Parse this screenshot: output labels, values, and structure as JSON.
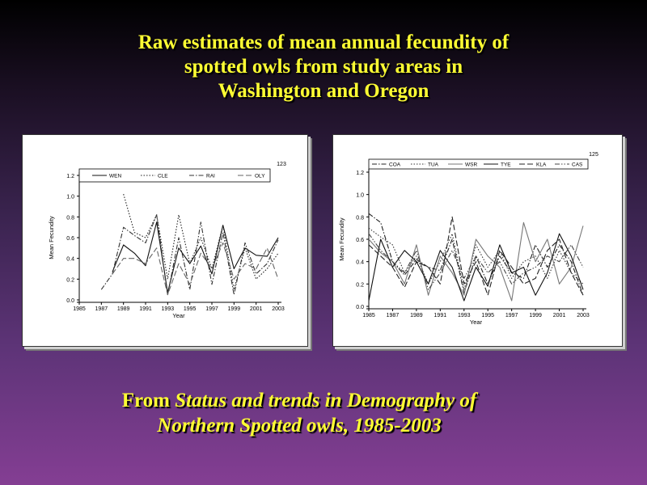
{
  "slide": {
    "title_lines": [
      "Raw estimates of mean annual fecundity of",
      "spotted owls from study areas in",
      "Washington and Oregon"
    ],
    "caption_prefix": "From ",
    "caption_italic_1": "Status and trends in Demography of",
    "caption_italic_2": "Northern Spotted owls, 1985-2003",
    "title_color": "#ffff33"
  },
  "chart_data": [
    {
      "type": "line",
      "panel_number": "123",
      "xlabel": "Year",
      "ylabel": "Mean Fecundity",
      "xlim": [
        1985,
        2003
      ],
      "ylim": [
        0,
        1.2
      ],
      "x_ticks": [
        "1985",
        "1987",
        "1989",
        "1991",
        "1993",
        "1995",
        "1997",
        "1999",
        "2001",
        "2003"
      ],
      "y_ticks": [
        "0.0",
        "0.2",
        "0.4",
        "0.6",
        "0.8",
        "1.0",
        "1.2"
      ],
      "grid": false,
      "legend_position": "top",
      "series": [
        {
          "name": "WEN",
          "style": "solid",
          "color": "#111111",
          "x": [
            1988,
            1989,
            1990,
            1991,
            1992,
            1993,
            1994,
            1995,
            1996,
            1997,
            1998,
            1999,
            2000,
            2001,
            2002,
            2003
          ],
          "values": [
            0.27,
            0.53,
            0.45,
            0.33,
            0.75,
            0.07,
            0.5,
            0.35,
            0.52,
            0.25,
            0.72,
            0.3,
            0.5,
            0.43,
            0.42,
            0.6
          ]
        },
        {
          "name": "CLE",
          "style": "dotted",
          "color": "#222222",
          "x": [
            1989,
            1990,
            1991,
            1992,
            1993,
            1994,
            1995,
            1996,
            1997,
            1998,
            1999,
            2000,
            2001,
            2002,
            2003
          ],
          "values": [
            1.02,
            0.65,
            0.6,
            0.82,
            0.2,
            0.82,
            0.35,
            0.6,
            0.3,
            0.72,
            0.1,
            0.5,
            0.2,
            0.3,
            0.45
          ]
        },
        {
          "name": "RAI",
          "style": "dashdot",
          "color": "#333333",
          "x": [
            1987,
            1988,
            1989,
            1990,
            1991,
            1992,
            1993,
            1994,
            1995,
            1996,
            1997,
            1998,
            1999,
            2000,
            2001,
            2002,
            2003
          ],
          "values": [
            0.1,
            0.25,
            0.7,
            0.62,
            0.55,
            0.82,
            0.05,
            0.6,
            0.1,
            0.75,
            0.15,
            0.65,
            0.05,
            0.55,
            0.25,
            0.35,
            0.58
          ]
        },
        {
          "name": "OLY",
          "style": "longdash",
          "color": "#666666",
          "x": [
            1988,
            1989,
            1990,
            1991,
            1992,
            1993,
            1994,
            1995,
            1996,
            1997,
            1998,
            1999,
            2000,
            2001,
            2002,
            2003
          ],
          "values": [
            0.25,
            0.4,
            0.4,
            0.35,
            0.5,
            0.05,
            0.35,
            0.15,
            0.45,
            0.3,
            0.55,
            0.2,
            0.35,
            0.3,
            0.5,
            0.2
          ]
        }
      ]
    },
    {
      "type": "line",
      "panel_number": "125",
      "xlabel": "Year",
      "ylabel": "Mean Fecundity",
      "xlim": [
        1985,
        2003
      ],
      "ylim": [
        0,
        1.2
      ],
      "x_ticks": [
        "1985",
        "1987",
        "1989",
        "1991",
        "1993",
        "1995",
        "1997",
        "1999",
        "2001",
        "2003"
      ],
      "y_ticks": [
        "0.0",
        "0.2",
        "0.4",
        "0.6",
        "0.8",
        "1.0",
        "1.2"
      ],
      "grid": false,
      "legend_position": "top",
      "series": [
        {
          "name": "COA",
          "style": "dashdot",
          "color": "#222222",
          "x": [
            1985,
            1986,
            1987,
            1988,
            1989,
            1990,
            1991,
            1992,
            1993,
            1994,
            1995,
            1996,
            1997,
            1998,
            1999,
            2000,
            2001,
            2002,
            2003
          ],
          "values": [
            0.83,
            0.75,
            0.4,
            0.28,
            0.42,
            0.35,
            0.32,
            0.6,
            0.12,
            0.45,
            0.2,
            0.45,
            0.3,
            0.25,
            0.55,
            0.35,
            0.55,
            0.4,
            0.1
          ]
        },
        {
          "name": "TUA",
          "style": "dotted",
          "color": "#333333",
          "x": [
            1985,
            1986,
            1987,
            1988,
            1989,
            1990,
            1991,
            1992,
            1993,
            1994,
            1995,
            1996,
            1997,
            1998,
            1999,
            2000,
            2001,
            2002,
            2003
          ],
          "values": [
            0.7,
            0.62,
            0.55,
            0.3,
            0.45,
            0.2,
            0.4,
            0.65,
            0.15,
            0.55,
            0.35,
            0.5,
            0.25,
            0.4,
            0.45,
            0.25,
            0.5,
            0.3,
            0.2
          ]
        },
        {
          "name": "WSR",
          "style": "solid",
          "color": "#777777",
          "x": [
            1985,
            1986,
            1987,
            1988,
            1989,
            1990,
            1991,
            1992,
            1993,
            1994,
            1995,
            1996,
            1997,
            1998,
            1999,
            2000,
            2001,
            2002,
            2003
          ],
          "values": [
            0.6,
            0.48,
            0.4,
            0.2,
            0.55,
            0.1,
            0.45,
            0.3,
            0.1,
            0.6,
            0.45,
            0.35,
            0.05,
            0.75,
            0.4,
            0.6,
            0.2,
            0.35,
            0.72
          ]
        },
        {
          "name": "TYE",
          "style": "solid",
          "color": "#111111",
          "x": [
            1985,
            1986,
            1987,
            1988,
            1989,
            1990,
            1991,
            1992,
            1993,
            1994,
            1995,
            1996,
            1997,
            1998,
            1999,
            2000,
            2001,
            2002,
            2003
          ],
          "values": [
            0.05,
            0.6,
            0.35,
            0.5,
            0.4,
            0.2,
            0.5,
            0.35,
            0.05,
            0.35,
            0.18,
            0.55,
            0.3,
            0.35,
            0.1,
            0.3,
            0.65,
            0.45,
            0.15
          ]
        },
        {
          "name": "KLA",
          "style": "longdash",
          "color": "#222222",
          "x": [
            1985,
            1986,
            1987,
            1988,
            1989,
            1990,
            1991,
            1992,
            1993,
            1994,
            1995,
            1996,
            1997,
            1998,
            1999,
            2000,
            2001,
            2002,
            2003
          ],
          "values": [
            0.55,
            0.45,
            0.35,
            0.17,
            0.4,
            0.35,
            0.2,
            0.8,
            0.2,
            0.4,
            0.1,
            0.5,
            0.35,
            0.2,
            0.25,
            0.5,
            0.6,
            0.3,
            0.1
          ]
        },
        {
          "name": "CAS",
          "style": "dashdotdot",
          "color": "#444444",
          "x": [
            1985,
            1986,
            1987,
            1988,
            1989,
            1990,
            1991,
            1992,
            1993,
            1994,
            1995,
            1996,
            1997,
            1998,
            1999,
            2000,
            2001,
            2002,
            2003
          ],
          "values": [
            0.65,
            0.5,
            0.4,
            0.3,
            0.5,
            0.15,
            0.3,
            0.5,
            0.25,
            0.45,
            0.3,
            0.4,
            0.2,
            0.3,
            0.35,
            0.45,
            0.4,
            0.55,
            0.35
          ]
        }
      ]
    }
  ]
}
